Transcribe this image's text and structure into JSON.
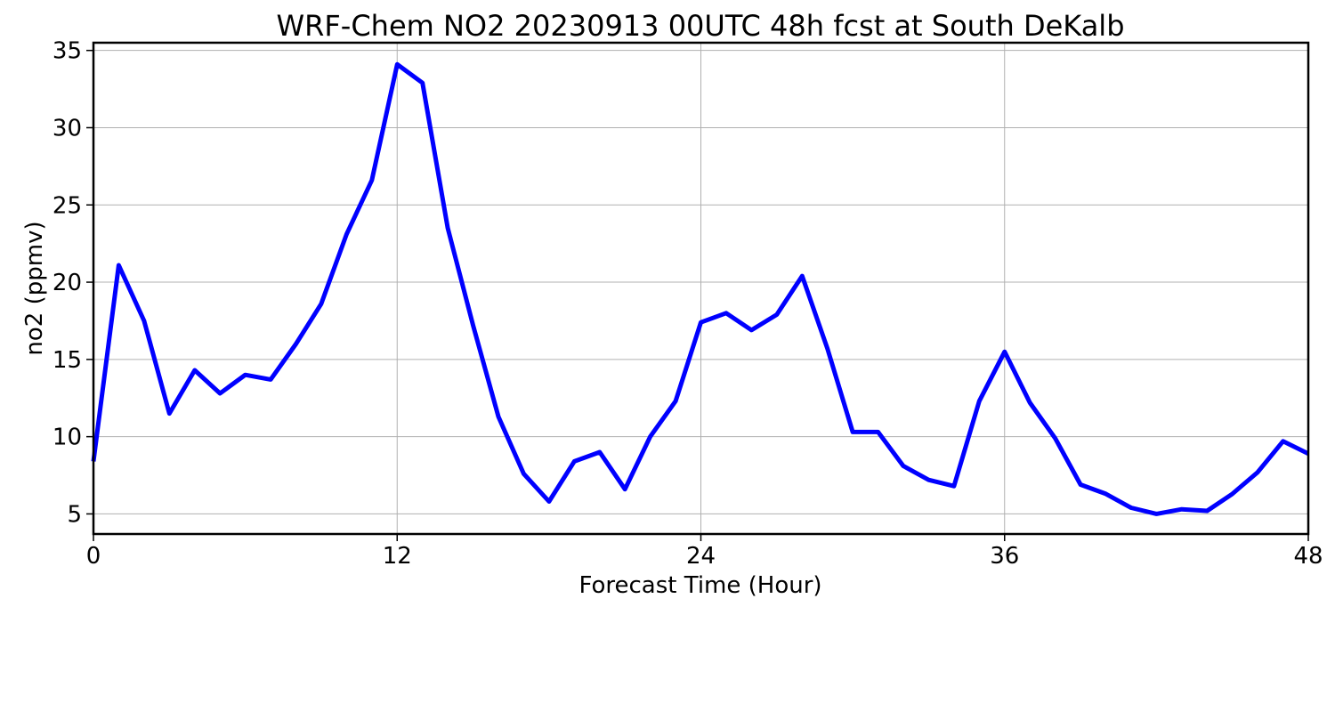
{
  "chart_data": {
    "type": "line",
    "title": "WRF-Chem NO2  20230913 00UTC 48h fcst at South DeKalb",
    "xlabel": "Forecast Time (Hour)",
    "ylabel": "no2  (ppmv)",
    "xlim": [
      0,
      48
    ],
    "ylim": [
      3.7,
      35.5
    ],
    "xticks": [
      0,
      12,
      24,
      36,
      48
    ],
    "yticks": [
      5,
      10,
      15,
      20,
      25,
      30,
      35
    ],
    "grid": true,
    "line_color": "#0000ff",
    "series": [
      {
        "x": [
          0,
          1,
          2,
          3,
          4,
          5,
          6,
          7,
          8,
          9,
          10,
          11,
          12,
          13,
          14,
          15,
          16,
          17,
          18,
          19,
          20,
          21,
          22,
          23,
          24,
          25,
          26,
          27,
          28,
          29,
          30,
          31,
          32,
          33,
          34,
          35,
          36,
          37,
          38,
          39,
          40,
          41,
          42,
          43,
          44,
          45,
          46,
          47,
          48
        ],
        "values": [
          8.4,
          21.1,
          17.5,
          11.5,
          14.3,
          12.8,
          14.0,
          13.7,
          16.0,
          18.6,
          23.1,
          26.6,
          34.1,
          32.9,
          23.5,
          17.2,
          11.3,
          7.6,
          5.8,
          8.4,
          9.0,
          6.6,
          10.0,
          12.3,
          17.4,
          18.0,
          16.9,
          17.9,
          20.4,
          15.7,
          10.3,
          10.3,
          8.1,
          7.2,
          6.8,
          12.3,
          15.5,
          12.2,
          9.9,
          6.9,
          6.3,
          5.4,
          5.0,
          5.3,
          5.2,
          6.3,
          7.7,
          9.7,
          8.9
        ]
      }
    ]
  }
}
